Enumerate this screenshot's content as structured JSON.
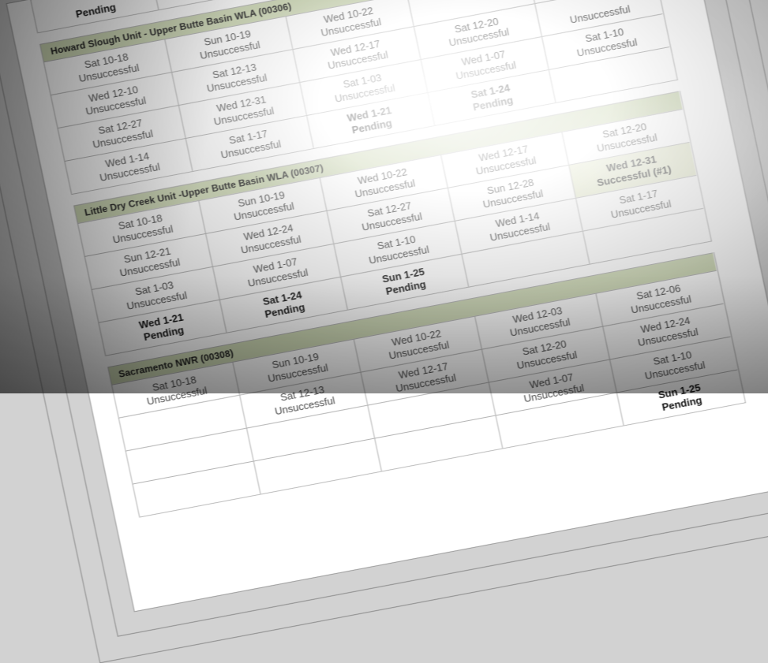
{
  "colors": {
    "header_bg": "#ccd7b3",
    "success_bg": "#e6ebcd",
    "cell_text": "#4a4a4a",
    "emphasis_text": "#141414",
    "grid_line": "#b2b2b2"
  },
  "tables": [
    {
      "title": "",
      "rows": [
        [
          {
            "d": "",
            "s": "Pending"
          },
          {
            "d": "",
            "s": ""
          },
          {
            "d": "",
            "s": ""
          },
          {
            "d": "",
            "s": ""
          },
          {
            "d": "",
            "s": ""
          }
        ]
      ]
    },
    {
      "title": "Howard Slough Unit - Upper Butte Basin WLA (00306)",
      "rows": [
        [
          {
            "d": "Sat 10-18",
            "s": "Unsuccessful"
          },
          {
            "d": "Sun 10-19",
            "s": "Unsuccessful"
          },
          {
            "d": "Wed 10-22",
            "s": "Unsuccessful"
          },
          {
            "d": "",
            "s": ""
          },
          {
            "d": "",
            "s": ""
          }
        ],
        [
          {
            "d": "Wed 12-10",
            "s": "Unsuccessful"
          },
          {
            "d": "Sat 12-13",
            "s": "Unsuccessful"
          },
          {
            "d": "Wed 12-17",
            "s": "Unsuccessful"
          },
          {
            "d": "Sat 12-20",
            "s": "Unsuccessful"
          },
          {
            "d": "",
            "s": "Unsuccessful"
          }
        ],
        [
          {
            "d": "Sat 12-27",
            "s": "Unsuccessful"
          },
          {
            "d": "Wed 12-31",
            "s": "Unsuccessful"
          },
          {
            "d": "Sat 1-03",
            "s": "Unsuccessful"
          },
          {
            "d": "Wed 1-07",
            "s": "Unsuccessful"
          },
          {
            "d": "Sat 1-10",
            "s": "Unsuccessful"
          }
        ],
        [
          {
            "d": "Wed 1-14",
            "s": "Unsuccessful"
          },
          {
            "d": "Sat 1-17",
            "s": "Unsuccessful"
          },
          {
            "d": "Wed 1-21",
            "s": "Pending"
          },
          {
            "d": "Sat 1-24",
            "s": "Pending"
          },
          {
            "d": "",
            "s": ""
          }
        ]
      ]
    },
    {
      "title": "Little Dry Creek Unit -Upper Butte Basin WLA (00307)",
      "rows": [
        [
          {
            "d": "Sat 10-18",
            "s": "Unsuccessful"
          },
          {
            "d": "Sun 10-19",
            "s": "Unsuccessful"
          },
          {
            "d": "Wed 10-22",
            "s": "Unsuccessful"
          },
          {
            "d": "Wed 12-17",
            "s": "Unsuccessful"
          },
          {
            "d": "Sat 12-20",
            "s": "Unsuccessful"
          }
        ],
        [
          {
            "d": "Sun 12-21",
            "s": "Unsuccessful"
          },
          {
            "d": "Wed 12-24",
            "s": "Unsuccessful"
          },
          {
            "d": "Sat 12-27",
            "s": "Unsuccessful"
          },
          {
            "d": "Sun 12-28",
            "s": "Unsuccessful"
          },
          {
            "d": "Wed 12-31",
            "s": "Successful (#1)"
          }
        ],
        [
          {
            "d": "Sat 1-03",
            "s": "Unsuccessful"
          },
          {
            "d": "Wed 1-07",
            "s": "Unsuccessful"
          },
          {
            "d": "Sat 1-10",
            "s": "Unsuccessful"
          },
          {
            "d": "Wed 1-14",
            "s": "Unsuccessful"
          },
          {
            "d": "Sat 1-17",
            "s": "Unsuccessful"
          }
        ],
        [
          {
            "d": "Wed 1-21",
            "s": "Pending"
          },
          {
            "d": "Sat 1-24",
            "s": "Pending"
          },
          {
            "d": "Sun 1-25",
            "s": "Pending"
          },
          {
            "d": "",
            "s": ""
          },
          {
            "d": "",
            "s": ""
          }
        ]
      ]
    },
    {
      "title": "Sacramento NWR (00308)",
      "rows": [
        [
          {
            "d": "Sat 10-18",
            "s": "Unsuccessful"
          },
          {
            "d": "Sun 10-19",
            "s": "Unsuccessful"
          },
          {
            "d": "Wed 10-22",
            "s": "Unsuccessful"
          },
          {
            "d": "Wed 12-03",
            "s": "Unsuccessful"
          },
          {
            "d": "Sat 12-06",
            "s": "Unsuccessful"
          }
        ],
        [
          {
            "d": "",
            "s": ""
          },
          {
            "d": "Sat 12-13",
            "s": "Unsuccessful"
          },
          {
            "d": "Wed 12-17",
            "s": "Unsuccessful"
          },
          {
            "d": "Sat 12-20",
            "s": "Unsuccessful"
          },
          {
            "d": "Wed 12-24",
            "s": "Unsuccessful"
          }
        ],
        [
          {
            "d": "",
            "s": ""
          },
          {
            "d": "",
            "s": ""
          },
          {
            "d": "",
            "s": ""
          },
          {
            "d": "Wed 1-07",
            "s": "Unsuccessful"
          },
          {
            "d": "Sat 1-10",
            "s": "Unsuccessful"
          }
        ],
        [
          {
            "d": "",
            "s": ""
          },
          {
            "d": "",
            "s": ""
          },
          {
            "d": "",
            "s": ""
          },
          {
            "d": "",
            "s": ""
          },
          {
            "d": "Sun 1-25",
            "s": "Pending"
          }
        ]
      ]
    }
  ]
}
